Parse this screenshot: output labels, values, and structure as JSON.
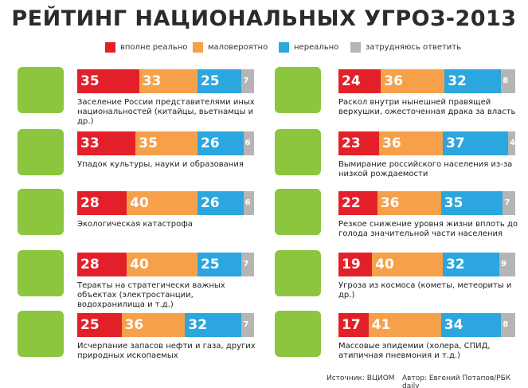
{
  "chart_data": {
    "type": "stacked-hbar",
    "title": "РЕЙТИНГ НАЦИОНАЛЬНЫХ УГРОЗ-2013",
    "categories": [
      "Заселение России представителями иных национальностей (китайцы, вьетнамцы и др.)",
      "Упадок культуры, науки и образования",
      "Экологическая катастрофа",
      "Теракты на стратегически важных объектах (электростанции, водохранилища и т.д.)",
      "Исчерпание запасов нефти и газа, других природных ископаемых",
      "Раскол внутри нынешней правящей верхушки, ожесточенная драка за власть",
      "Вымирание российского населения из-за низкой рождаемости",
      "Резкое снижение уровня жизни вплоть до голода значительной части населения",
      "Угроза из космоса (кометы, метеориты и др.)",
      "Массовые эпидемии (холера, СПИД, атипичная пневмония и т.д.)"
    ],
    "series": [
      {
        "name": "вполне реально",
        "color": "#e3202a",
        "values": [
          35,
          33,
          28,
          28,
          25,
          24,
          23,
          22,
          19,
          17
        ]
      },
      {
        "name": "маловероятно",
        "color": "#f6a04a",
        "values": [
          33,
          35,
          40,
          40,
          36,
          36,
          36,
          36,
          40,
          41
        ]
      },
      {
        "name": "нереально",
        "color": "#2ba6df",
        "values": [
          25,
          26,
          26,
          25,
          32,
          32,
          37,
          35,
          32,
          34
        ]
      },
      {
        "name": "затрудняюсь ответить",
        "color": "#b5b5b5",
        "values": [
          7,
          6,
          6,
          7,
          7,
          8,
          4,
          7,
          9,
          8
        ]
      }
    ],
    "xlim": [
      0,
      100
    ],
    "source": "Источник: ВЦИОМ",
    "author": "Автор: Евгений Потапов/РБК daily"
  }
}
